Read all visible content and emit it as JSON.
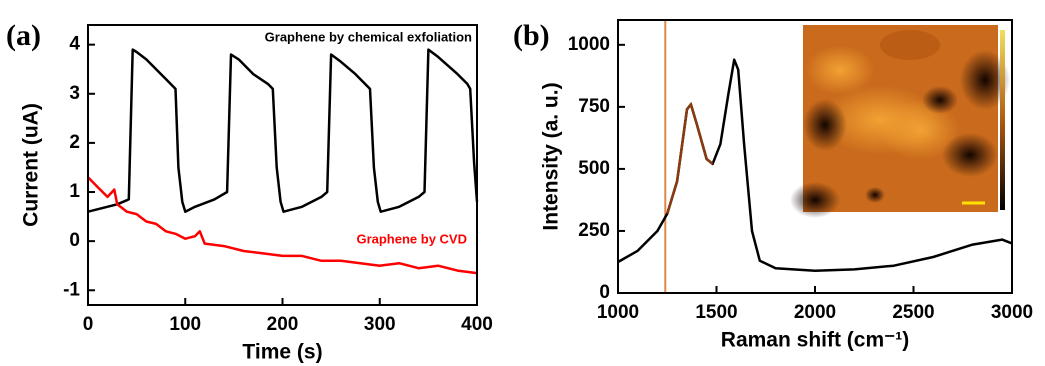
{
  "chart_data": [
    {
      "type": "line",
      "panel_label": "(a)",
      "x_label": "Time (s)",
      "y_label": "Current (uA)",
      "xlim": [
        0,
        400
      ],
      "xticks": [
        0,
        100,
        200,
        300,
        400
      ],
      "ylim": [
        -1.3,
        4.4
      ],
      "yticks": [
        -1,
        0,
        1,
        2,
        3,
        4
      ],
      "series": [
        {
          "name": "Graphene by chemical exfoliation",
          "color": "#000000",
          "x": [
            0,
            30,
            42,
            46,
            50,
            60,
            70,
            80,
            90,
            93,
            97,
            100,
            110,
            130,
            143,
            147,
            155,
            170,
            185,
            190,
            194,
            198,
            201,
            220,
            240,
            246,
            250,
            260,
            275,
            290,
            294,
            298,
            301,
            320,
            340,
            346,
            350,
            360,
            380,
            390,
            393,
            397,
            400
          ],
          "values": [
            0.6,
            0.75,
            0.85,
            3.9,
            3.85,
            3.7,
            3.5,
            3.3,
            3.1,
            1.5,
            0.8,
            0.6,
            0.7,
            0.85,
            1.0,
            3.8,
            3.7,
            3.4,
            3.2,
            3.1,
            1.5,
            0.8,
            0.6,
            0.7,
            0.9,
            1.0,
            3.8,
            3.65,
            3.4,
            3.1,
            1.5,
            0.8,
            0.6,
            0.7,
            0.9,
            1.0,
            3.9,
            3.75,
            3.4,
            3.2,
            3.1,
            1.6,
            0.8
          ]
        },
        {
          "name": "Graphene by CVD",
          "color": "#ff0000",
          "x": [
            0,
            5,
            10,
            20,
            27,
            30,
            40,
            50,
            60,
            70,
            80,
            90,
            100,
            110,
            115,
            120,
            140,
            160,
            180,
            200,
            220,
            240,
            260,
            280,
            300,
            320,
            340,
            360,
            380,
            400
          ],
          "values": [
            1.3,
            1.2,
            1.1,
            0.9,
            1.05,
            0.75,
            0.6,
            0.55,
            0.4,
            0.35,
            0.2,
            0.15,
            0.05,
            0.1,
            0.2,
            -0.05,
            -0.1,
            -0.2,
            -0.25,
            -0.3,
            -0.3,
            -0.4,
            -0.4,
            -0.45,
            -0.5,
            -0.45,
            -0.55,
            -0.5,
            -0.6,
            -0.65
          ]
        }
      ]
    },
    {
      "type": "line",
      "panel_label": "(b)",
      "x_label": "Raman shift (cm⁻¹)",
      "y_label": "Intensity (a. u.)",
      "xlim": [
        1000,
        3000
      ],
      "xticks": [
        1000,
        1500,
        2000,
        2500,
        3000
      ],
      "ylim": [
        0,
        1100
      ],
      "yticks": [
        0,
        250,
        500,
        750,
        1000
      ],
      "highlight": {
        "xlim": [
          1240,
          1500
        ],
        "color": "#e0884a"
      },
      "series": [
        {
          "color": "#000000",
          "x": [
            1000,
            1100,
            1200,
            1250,
            1300,
            1350,
            1370,
            1400,
            1450,
            1480,
            1520,
            1560,
            1590,
            1610,
            1640,
            1680,
            1720,
            1800,
            2000,
            2200,
            2400,
            2600,
            2800,
            2950,
            3000
          ],
          "values": [
            125,
            170,
            250,
            320,
            450,
            740,
            760,
            680,
            540,
            520,
            600,
            800,
            940,
            900,
            600,
            250,
            130,
            100,
            90,
            95,
            110,
            145,
            195,
            215,
            200
          ]
        }
      ]
    }
  ]
}
